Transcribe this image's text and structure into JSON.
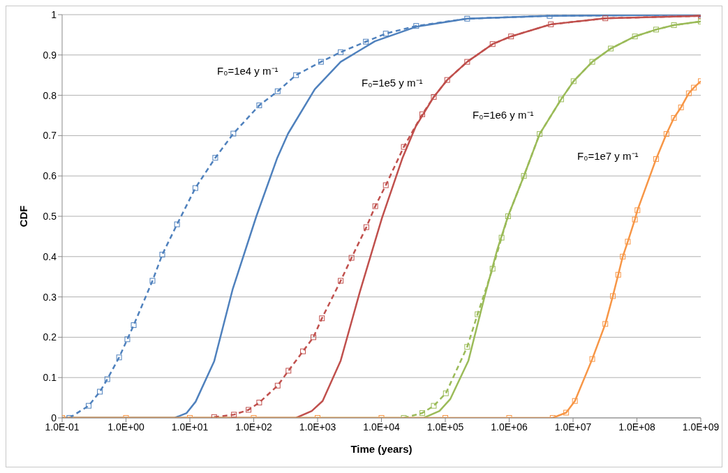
{
  "chart_data": {
    "type": "line",
    "xlabel": "Time (years)",
    "ylabel": "CDF",
    "log": "x",
    "grid": "y",
    "xlim": [
      0.1,
      1000000000
    ],
    "xticks": [
      {
        "value": 0.1,
        "label": "1.0E-01"
      },
      {
        "value": 1,
        "label": "1.0E+00"
      },
      {
        "value": 10,
        "label": "1.0E+01"
      },
      {
        "value": 100,
        "label": "1.0E+02"
      },
      {
        "value": 1000,
        "label": "1.0E+03"
      },
      {
        "value": 10000,
        "label": "1.0E+04"
      },
      {
        "value": 100000,
        "label": "1.0E+05"
      },
      {
        "value": 1000000,
        "label": "1.0E+06"
      },
      {
        "value": 10000000,
        "label": "1.0E+07"
      },
      {
        "value": 100000000,
        "label": "1.0E+08"
      },
      {
        "value": 1000000000,
        "label": "1.0E+09"
      }
    ],
    "ylim": [
      0,
      1
    ],
    "yticks": [
      0,
      0.1,
      0.2,
      0.3,
      0.4,
      0.5,
      0.6,
      0.7,
      0.8,
      0.9,
      1
    ],
    "annotations": [
      "F₀=1e4 y m⁻¹",
      "F₀=1e5 y m⁻¹",
      "F₀=1e6 y m⁻¹",
      "F₀=1e7 y m⁻¹"
    ],
    "series": [
      {
        "color": "#4f81bd",
        "line_style": "dashed",
        "marker": "square",
        "x": [
          0.13,
          0.26,
          0.39,
          0.51,
          0.78,
          1.05,
          1.32,
          2.6,
          3.7,
          6.3,
          12.2,
          25,
          48,
          122,
          237,
          460,
          1130,
          2300,
          5700,
          11700,
          35000,
          220000,
          4300000,
          1000000000
        ],
        "values": [
          0,
          0.03,
          0.065,
          0.096,
          0.15,
          0.195,
          0.23,
          0.34,
          0.405,
          0.48,
          0.57,
          0.645,
          0.705,
          0.775,
          0.81,
          0.85,
          0.883,
          0.907,
          0.933,
          0.953,
          0.972,
          0.99,
          0.997,
          1
        ]
      },
      {
        "color": "#4f81bd",
        "line_style": "solid",
        "marker": "none",
        "x": [
          0.1,
          5.8,
          8.9,
          12.3,
          24,
          47,
          110,
          234,
          345,
          905,
          2300,
          7900,
          35000,
          220000,
          4300000,
          1000000000
        ],
        "values": [
          0,
          0,
          0.012,
          0.04,
          0.14,
          0.32,
          0.5,
          0.645,
          0.705,
          0.815,
          0.883,
          0.934,
          0.97,
          0.99,
          0.997,
          1
        ]
      },
      {
        "color": "#c0504d",
        "line_style": "dashed",
        "marker": "square",
        "x": [
          24,
          49,
          83,
          122,
          237,
          350,
          590,
          860,
          1170,
          2300,
          3400,
          5800,
          8000,
          11700,
          22400,
          43600,
          66000,
          107000,
          220000,
          550000,
          1070000,
          4500000,
          32000000,
          1000000000
        ],
        "values": [
          0.002,
          0.008,
          0.02,
          0.038,
          0.08,
          0.117,
          0.165,
          0.2,
          0.247,
          0.34,
          0.397,
          0.473,
          0.525,
          0.577,
          0.672,
          0.753,
          0.796,
          0.838,
          0.883,
          0.927,
          0.946,
          0.976,
          0.991,
          0.997
        ]
      },
      {
        "color": "#c0504d",
        "line_style": "solid",
        "marker": "none",
        "x": [
          0.1,
          460,
          810,
          1200,
          2300,
          4600,
          10200,
          21400,
          34500,
          66000,
          107000,
          220000,
          550000,
          1070000,
          4500000,
          32000000,
          1000000000
        ],
        "values": [
          0,
          0,
          0.017,
          0.042,
          0.142,
          0.313,
          0.496,
          0.645,
          0.723,
          0.796,
          0.838,
          0.883,
          0.927,
          0.946,
          0.976,
          0.991,
          0.997
        ]
      },
      {
        "color": "#9bbb59",
        "line_style": "dashed",
        "marker": "square",
        "x": [
          22400,
          43600,
          66000,
          102000,
          220000,
          320000,
          550000,
          760000,
          960000,
          1700000,
          3000000,
          6500000,
          10200000,
          20000000,
          39000000,
          93000000,
          200000000,
          380000000,
          1000000000
        ],
        "values": [
          0,
          0.012,
          0.03,
          0.061,
          0.176,
          0.257,
          0.37,
          0.447,
          0.5,
          0.6,
          0.704,
          0.79,
          0.835,
          0.883,
          0.916,
          0.946,
          0.963,
          0.974,
          0.983
        ]
      },
      {
        "color": "#9bbb59",
        "line_style": "solid",
        "marker": "none",
        "x": [
          0.1,
          46000,
          81000,
          120000,
          230000,
          420000,
          650000,
          960000,
          1700000,
          3000000,
          6500000,
          10200000,
          20000000,
          39000000,
          93000000,
          200000000,
          380000000,
          1000000000
        ],
        "values": [
          0,
          0,
          0.017,
          0.047,
          0.142,
          0.306,
          0.417,
          0.5,
          0.6,
          0.704,
          0.79,
          0.835,
          0.883,
          0.916,
          0.946,
          0.963,
          0.974,
          0.983
        ]
      },
      {
        "color": "#f79646",
        "line_style": "solid",
        "marker": "square",
        "x": [
          0.1,
          1,
          10,
          100,
          1000,
          10000,
          100000,
          1000000,
          4800000,
          7800000,
          10700000,
          20000000,
          32000000,
          42000000,
          51000000,
          60000000,
          72000000,
          93000000,
          102000000,
          200000000,
          290000000,
          380000000,
          490000000,
          650000000,
          780000000,
          1000000000
        ],
        "values": [
          0,
          0,
          0,
          0,
          0,
          0,
          0,
          0,
          0,
          0.013,
          0.042,
          0.146,
          0.233,
          0.302,
          0.355,
          0.4,
          0.437,
          0.492,
          0.515,
          0.642,
          0.704,
          0.744,
          0.77,
          0.805,
          0.819,
          0.835
        ]
      }
    ]
  }
}
